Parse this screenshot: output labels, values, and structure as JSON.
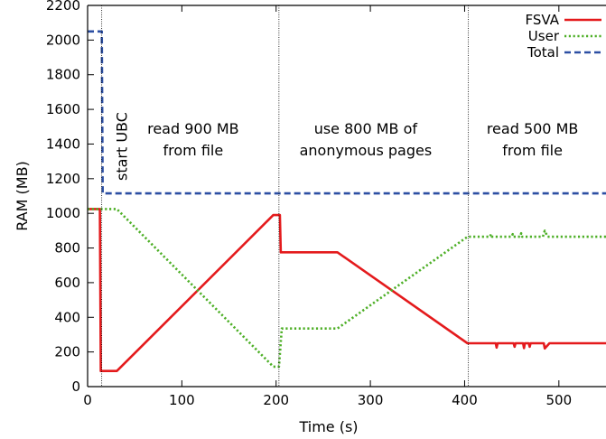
{
  "chart_data": {
    "type": "line",
    "xlabel": "Time (s)",
    "ylabel": "RAM (MB)",
    "xlim": [
      0,
      550
    ],
    "ylim": [
      0,
      2200
    ],
    "xticks": [
      0,
      100,
      200,
      300,
      400,
      500
    ],
    "yticks": [
      0,
      200,
      400,
      600,
      800,
      1000,
      1200,
      1400,
      1600,
      1800,
      2000,
      2200
    ],
    "grid": false,
    "legend_position": "top-right",
    "series": [
      {
        "name": "FSVA",
        "color": "#e41a1c",
        "dash": "solid",
        "points": [
          [
            0,
            1025
          ],
          [
            13,
            1025
          ],
          [
            14,
            90
          ],
          [
            31,
            90
          ],
          [
            197,
            990
          ],
          [
            204,
            990
          ],
          [
            205,
            775
          ],
          [
            265,
            775
          ],
          [
            403,
            250
          ],
          [
            433,
            250
          ],
          [
            434,
            225
          ],
          [
            435,
            250
          ],
          [
            452,
            250
          ],
          [
            453,
            230
          ],
          [
            454,
            250
          ],
          [
            462,
            250
          ],
          [
            463,
            222
          ],
          [
            464,
            250
          ],
          [
            468,
            250
          ],
          [
            469,
            230
          ],
          [
            470,
            250
          ],
          [
            484,
            250
          ],
          [
            485,
            220
          ],
          [
            490,
            250
          ],
          [
            550,
            250
          ]
        ]
      },
      {
        "name": "User",
        "color": "#4daf26",
        "dash": "dotted",
        "points": [
          [
            0,
            1025
          ],
          [
            31,
            1025
          ],
          [
            197,
            115
          ],
          [
            203,
            115
          ],
          [
            206,
            335
          ],
          [
            265,
            335
          ],
          [
            403,
            865
          ],
          [
            427,
            865
          ],
          [
            428,
            880
          ],
          [
            429,
            865
          ],
          [
            450,
            865
          ],
          [
            451,
            880
          ],
          [
            452,
            865
          ],
          [
            459,
            865
          ],
          [
            460,
            885
          ],
          [
            461,
            865
          ],
          [
            483,
            865
          ],
          [
            485,
            900
          ],
          [
            488,
            865
          ],
          [
            550,
            865
          ]
        ]
      },
      {
        "name": "Total",
        "color": "#2c4fa3",
        "dash": "dashed",
        "points": [
          [
            0,
            2050
          ],
          [
            15,
            2050
          ],
          [
            16,
            1115
          ],
          [
            550,
            1115
          ]
        ]
      }
    ],
    "vlines": [
      15,
      203,
      404
    ],
    "annotations": [
      {
        "text": "start UBC",
        "x": 15,
        "rotated": true
      },
      {
        "lines": [
          "read 900 MB",
          "from file"
        ],
        "x": 112
      },
      {
        "lines": [
          "use 800 MB of",
          "anonymous pages"
        ],
        "x": 295
      },
      {
        "lines": [
          "read 500 MB",
          "from file"
        ],
        "x": 472
      }
    ]
  }
}
